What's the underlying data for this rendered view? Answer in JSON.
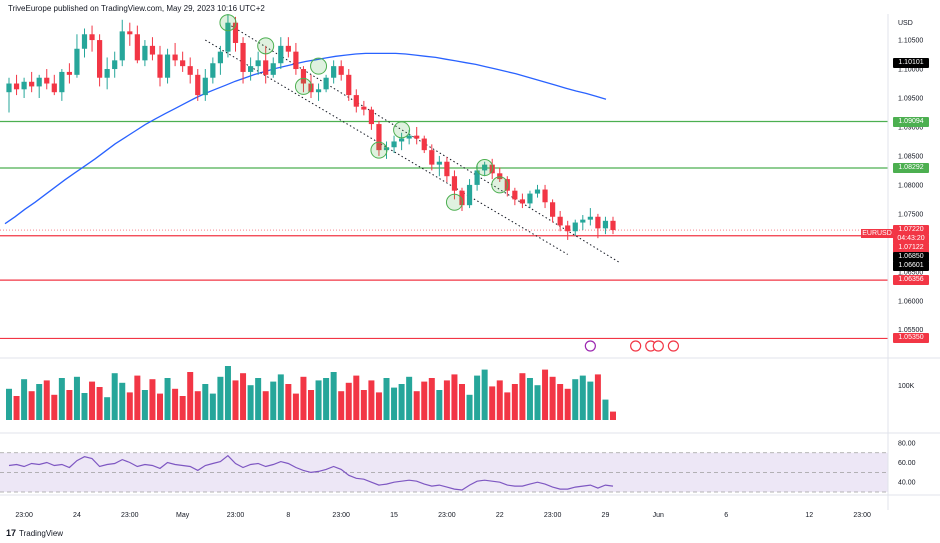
{
  "header": {
    "publisher_line": "TriveEurope published on TradingView.com, May 29, 2023 10:16 UTC+2"
  },
  "brand": {
    "logo": "17",
    "name": "TradingView"
  },
  "price_axis": {
    "currency": "USD",
    "ticks": [
      "1.10500",
      "1.10000",
      "1.09500",
      "1.09000",
      "1.08500",
      "1.08000",
      "1.07500",
      "1.07000",
      "1.06500",
      "1.06000",
      "1.05500"
    ]
  },
  "price_labels": [
    {
      "text": "1.10101",
      "bg": "#000000",
      "fg": "#ffffff",
      "price": 1.10101
    },
    {
      "text": "1.09094",
      "bg": "#4caf50",
      "fg": "#ffffff",
      "price": 1.09094
    },
    {
      "text": "1.08292",
      "bg": "#4caf50",
      "fg": "#ffffff",
      "price": 1.08292
    },
    {
      "text": "1.07220",
      "bg": "#f23645",
      "fg": "#ffffff",
      "price": 1.0722
    },
    {
      "text": "04:43:20",
      "bg": "#f23645",
      "fg": "#ffffff",
      "price": 1.0716
    },
    {
      "text": "1.07122",
      "bg": "#f23645",
      "fg": "#ffffff",
      "price": 1.07122
    },
    {
      "text": "1.06850",
      "bg": "#000000",
      "fg": "#ffffff",
      "price": 1.0685
    },
    {
      "text": "1.06601",
      "bg": "#000000",
      "fg": "#ffffff",
      "price": 1.06601
    },
    {
      "text": "1.06356",
      "bg": "#f23645",
      "fg": "#ffffff",
      "price": 1.06356
    },
    {
      "text": "1.05350",
      "bg": "#f23645",
      "fg": "#ffffff",
      "price": 1.0535
    }
  ],
  "symbol_tag": "EURUSD",
  "volume_axis": {
    "label": "100K"
  },
  "rsi_axis": {
    "ticks": [
      "80.00",
      "60.00",
      "40.00"
    ]
  },
  "time_axis": {
    "labels": [
      {
        "text": "23:00",
        "index": 2
      },
      {
        "text": "24",
        "index": 9
      },
      {
        "text": "23:00",
        "index": 16
      },
      {
        "text": "May",
        "index": 23
      },
      {
        "text": "23:00",
        "index": 30
      },
      {
        "text": "8",
        "index": 37
      },
      {
        "text": "23:00",
        "index": 44
      },
      {
        "text": "15",
        "index": 51
      },
      {
        "text": "23:00",
        "index": 58
      },
      {
        "text": "22",
        "index": 65
      },
      {
        "text": "23:00",
        "index": 72
      },
      {
        "text": "29",
        "index": 79
      },
      {
        "text": "Jun",
        "index": 86
      },
      {
        "text": "6",
        "index": 95
      },
      {
        "text": "12",
        "index": 106
      },
      {
        "text": "23:00",
        "index": 113
      }
    ]
  },
  "colors": {
    "up": "#26a69a",
    "down": "#f23645",
    "ma": "#2962ff",
    "rsi": "#7e57c2",
    "rsi_band": "#ede7f6",
    "support": "#4caf50",
    "resistance": "#f23645"
  },
  "chart_data": {
    "type": "candlestick",
    "symbol": "EURUSD",
    "y_range": [
      1.0515,
      1.1095
    ],
    "horizontal_levels": [
      {
        "price": 1.09094,
        "color": "green"
      },
      {
        "price": 1.08292,
        "color": "green"
      },
      {
        "price": 1.07122,
        "color": "red"
      },
      {
        "price": 1.06356,
        "color": "red"
      },
      {
        "price": 1.0535,
        "color": "red"
      }
    ],
    "candles": [
      [
        1.096,
        1.0985,
        1.0925,
        1.0975
      ],
      [
        1.0975,
        1.099,
        1.0955,
        1.0965
      ],
      [
        1.0965,
        1.0985,
        1.095,
        1.0978
      ],
      [
        1.0978,
        1.0995,
        1.096,
        1.097
      ],
      [
        1.097,
        1.099,
        1.095,
        1.0985
      ],
      [
        1.0985,
        1.1,
        1.0965,
        1.0975
      ],
      [
        1.0975,
        1.099,
        1.0955,
        1.096
      ],
      [
        1.096,
        1.1,
        1.0945,
        1.0995
      ],
      [
        1.0995,
        1.101,
        1.0975,
        1.099
      ],
      [
        1.099,
        1.106,
        1.0985,
        1.1035
      ],
      [
        1.1035,
        1.107,
        1.102,
        1.106
      ],
      [
        1.106,
        1.1075,
        1.103,
        1.105
      ],
      [
        1.105,
        1.106,
        1.097,
        1.0985
      ],
      [
        1.0985,
        1.102,
        1.0965,
        1.1
      ],
      [
        1.1,
        1.103,
        1.0985,
        1.1015
      ],
      [
        1.1015,
        1.1085,
        1.1005,
        1.1065
      ],
      [
        1.1065,
        1.108,
        1.104,
        1.106
      ],
      [
        1.106,
        1.1075,
        1.101,
        1.1015
      ],
      [
        1.1015,
        1.105,
        1.1005,
        1.104
      ],
      [
        1.104,
        1.1055,
        1.1015,
        1.1025
      ],
      [
        1.1025,
        1.104,
        1.097,
        1.0985
      ],
      [
        1.0985,
        1.1035,
        1.0975,
        1.1025
      ],
      [
        1.1025,
        1.1045,
        1.1005,
        1.1015
      ],
      [
        1.1015,
        1.103,
        1.0995,
        1.1005
      ],
      [
        1.1005,
        1.102,
        1.0975,
        1.099
      ],
      [
        1.099,
        1.1,
        1.0945,
        1.0955
      ],
      [
        1.0955,
        1.1,
        1.0945,
        1.0985
      ],
      [
        1.0985,
        1.102,
        1.0975,
        1.101
      ],
      [
        1.101,
        1.104,
        1.099,
        1.103
      ],
      [
        1.103,
        1.1095,
        1.102,
        1.108
      ],
      [
        1.108,
        1.109,
        1.103,
        1.1045
      ],
      [
        1.1045,
        1.1055,
        1.0975,
        1.0995
      ],
      [
        1.0995,
        1.102,
        1.098,
        1.1005
      ],
      [
        1.1005,
        1.103,
        1.099,
        1.1015
      ],
      [
        1.1015,
        1.104,
        1.0975,
        1.099
      ],
      [
        1.099,
        1.102,
        1.0985,
        1.101
      ],
      [
        1.101,
        1.1055,
        1.1,
        1.104
      ],
      [
        1.104,
        1.1055,
        1.102,
        1.103
      ],
      [
        1.103,
        1.1045,
        1.099,
        1.1
      ],
      [
        1.1,
        1.1005,
        1.096,
        1.0975
      ],
      [
        1.0975,
        1.099,
        1.095,
        1.096
      ],
      [
        1.096,
        1.0975,
        1.0945,
        1.0965
      ],
      [
        1.0965,
        1.099,
        1.096,
        1.0985
      ],
      [
        1.0985,
        1.1015,
        1.0975,
        1.1005
      ],
      [
        1.1005,
        1.1015,
        1.098,
        1.099
      ],
      [
        1.099,
        1.1,
        1.0945,
        1.0955
      ],
      [
        1.0955,
        1.0965,
        1.0925,
        1.0935
      ],
      [
        1.0935,
        1.0945,
        1.092,
        1.093
      ],
      [
        1.093,
        1.0935,
        1.0895,
        1.0905
      ],
      [
        1.0905,
        1.091,
        1.085,
        1.086
      ],
      [
        1.086,
        1.0875,
        1.0845,
        1.0865
      ],
      [
        1.0865,
        1.0885,
        1.0855,
        1.0875
      ],
      [
        1.0875,
        1.089,
        1.086,
        1.088
      ],
      [
        1.088,
        1.0895,
        1.087,
        1.0885
      ],
      [
        1.0885,
        1.09,
        1.087,
        1.088
      ],
      [
        1.088,
        1.0885,
        1.0855,
        1.086
      ],
      [
        1.086,
        1.087,
        1.0825,
        1.0835
      ],
      [
        1.0835,
        1.085,
        1.0815,
        1.084
      ],
      [
        1.084,
        1.0848,
        1.0805,
        1.0815
      ],
      [
        1.0815,
        1.0825,
        1.0775,
        1.079
      ],
      [
        1.079,
        1.0795,
        1.0755,
        1.0765
      ],
      [
        1.0765,
        1.081,
        1.076,
        1.08
      ],
      [
        1.08,
        1.0835,
        1.079,
        1.0825
      ],
      [
        1.0825,
        1.084,
        1.0815,
        1.0835
      ],
      [
        1.0835,
        1.0845,
        1.081,
        1.082
      ],
      [
        1.082,
        1.083,
        1.0805,
        1.081
      ],
      [
        1.081,
        1.0815,
        1.078,
        1.079
      ],
      [
        1.079,
        1.0795,
        1.0765,
        1.0775
      ],
      [
        1.0775,
        1.0785,
        1.076,
        1.0768
      ],
      [
        1.0768,
        1.079,
        1.076,
        1.0785
      ],
      [
        1.0785,
        1.08,
        1.0778,
        1.0792
      ],
      [
        1.0792,
        1.08,
        1.076,
        1.077
      ],
      [
        1.077,
        1.0775,
        1.0735,
        1.0745
      ],
      [
        1.0745,
        1.0755,
        1.072,
        1.073
      ],
      [
        1.073,
        1.0738,
        1.0705,
        1.072
      ],
      [
        1.072,
        1.074,
        1.0712,
        1.0735
      ],
      [
        1.0735,
        1.0748,
        1.0722,
        1.074
      ],
      [
        1.074,
        1.076,
        1.073,
        1.0745
      ],
      [
        1.0745,
        1.075,
        1.0708,
        1.0725
      ],
      [
        1.0725,
        1.0745,
        1.0715,
        1.0738
      ],
      [
        1.0738,
        1.0745,
        1.0715,
        1.0722
      ]
    ],
    "volume": [
      52,
      40,
      68,
      48,
      60,
      66,
      42,
      70,
      50,
      72,
      45,
      64,
      55,
      38,
      78,
      62,
      46,
      74,
      50,
      68,
      44,
      70,
      52,
      40,
      80,
      48,
      60,
      44,
      72,
      90,
      66,
      78,
      58,
      70,
      48,
      64,
      76,
      60,
      44,
      72,
      50,
      66,
      70,
      80,
      48,
      62,
      74,
      50,
      66,
      46,
      70,
      54,
      60,
      72,
      48,
      64,
      70,
      50,
      66,
      76,
      60,
      42,
      74,
      84,
      56,
      66,
      46,
      60,
      78,
      70,
      58,
      84,
      72,
      60,
      52,
      68,
      74,
      64,
      76,
      34,
      14
    ],
    "rsi": [
      57,
      58,
      56,
      59,
      58,
      60,
      57,
      58,
      55,
      62,
      66,
      64,
      56,
      58,
      59,
      63,
      60,
      56,
      58,
      57,
      54,
      60,
      58,
      57,
      56,
      52,
      57,
      59,
      61,
      67,
      59,
      55,
      58,
      59,
      56,
      58,
      61,
      59,
      55,
      52,
      50,
      51,
      53,
      56,
      53,
      47,
      44,
      43,
      40,
      37,
      38,
      40,
      41,
      42,
      41,
      38,
      36,
      37,
      35,
      33,
      32,
      37,
      41,
      42,
      41,
      40,
      37,
      36,
      36,
      38,
      40,
      38,
      35,
      33,
      33,
      35,
      36,
      37,
      34,
      37,
      36
    ],
    "moving_average": [
      1.0733,
      1.0745,
      1.0758,
      1.077,
      1.0783,
      1.0796,
      1.0809,
      1.0821,
      1.0833,
      1.0845,
      1.0858,
      1.0871,
      1.0882,
      1.0893,
      1.0904,
      1.0914,
      1.0923,
      1.0932,
      1.0941,
      1.095,
      1.0958,
      1.0965,
      1.0972,
      1.0979,
      1.0985,
      1.0991,
      1.0996,
      1.1001,
      1.1005,
      1.1009,
      1.1013,
      1.1016,
      1.1019,
      1.1022,
      1.1024,
      1.1026,
      1.1027,
      1.1027,
      1.1027,
      1.1027,
      1.1026,
      1.1024,
      1.1022,
      1.102,
      1.1017,
      1.1014,
      1.1011,
      1.1008,
      1.1004,
      1.1,
      1.0996,
      1.0992,
      1.0987,
      1.0982,
      1.0977,
      1.0972,
      1.0967,
      1.0962,
      1.0958,
      1.0953,
      1.0948
    ],
    "channel_upper": [
      [
        29,
        1.1078
      ],
      [
        81,
        1.0665
      ]
    ],
    "channel_lower": [
      [
        26,
        1.105
      ],
      [
        74,
        1.068
      ]
    ],
    "touch_points": [
      [
        29,
        1.108
      ],
      [
        34,
        1.104
      ],
      [
        41,
        1.1005
      ],
      [
        39,
        1.097
      ],
      [
        49,
        1.086
      ],
      [
        52,
        1.0895
      ],
      [
        59,
        1.077
      ],
      [
        63,
        1.083
      ],
      [
        65,
        1.08
      ]
    ],
    "events_index": [
      77,
      83,
      85,
      86,
      88
    ]
  }
}
